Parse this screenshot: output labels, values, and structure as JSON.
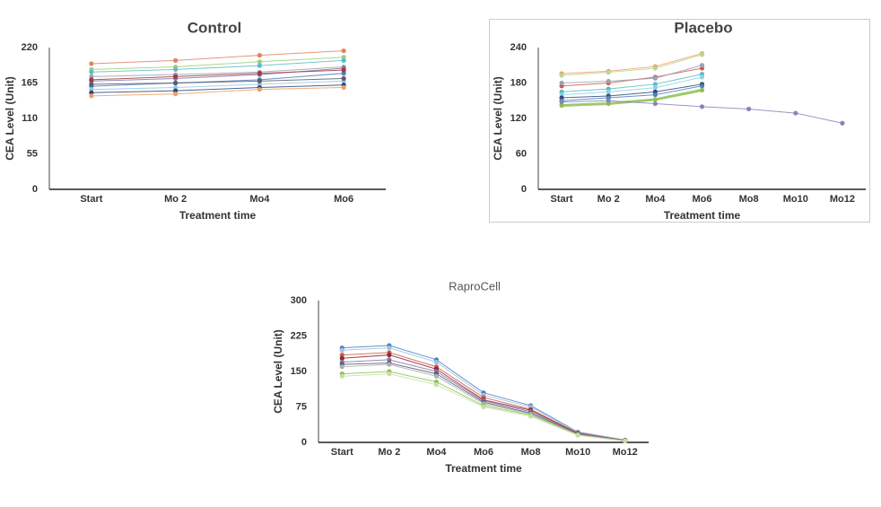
{
  "chart_data": [
    {
      "type": "line",
      "title": "Control",
      "ylabel": "CEA Level (Unit)",
      "xlabel": "Treatment time",
      "categories": [
        "Start",
        "Mo 2",
        "Mo4",
        "Mo6"
      ],
      "ylim": [
        0,
        220
      ],
      "yticks": [
        0,
        55,
        110,
        165,
        220
      ],
      "grid": false,
      "series": [
        {
          "color": "#e0826a",
          "values": [
            195,
            200,
            208,
            215
          ]
        },
        {
          "color": "#9ccf7a",
          "values": [
            186,
            190,
            198,
            205
          ]
        },
        {
          "color": "#5bbcc6",
          "values": [
            182,
            186,
            192,
            200
          ]
        },
        {
          "color": "#9aa3b5",
          "values": [
            175,
            178,
            182,
            190
          ]
        },
        {
          "color": "#8a74ae",
          "values": [
            168,
            172,
            178,
            188
          ]
        },
        {
          "color": "#4f81bd",
          "values": [
            160,
            165,
            170,
            180
          ]
        },
        {
          "color": "#a03a3a",
          "values": [
            170,
            175,
            180,
            185
          ]
        },
        {
          "color": "#9dc3e6",
          "values": [
            155,
            158,
            163,
            168
          ]
        },
        {
          "color": "#2d4a7a",
          "values": [
            150,
            153,
            158,
            162
          ]
        },
        {
          "color": "#f0a060",
          "values": [
            145,
            148,
            155,
            158
          ]
        },
        {
          "color": "#555d6e",
          "values": [
            163,
            165,
            168,
            172
          ]
        }
      ]
    },
    {
      "type": "line",
      "title": "Placebo",
      "ylabel": "CEA Level (Unit)",
      "xlabel": "Treatment time",
      "categories": [
        "Start",
        "Mo 2",
        "Mo4",
        "Mo6",
        "Mo8",
        "Mo10",
        "Mo12"
      ],
      "ylim": [
        0,
        240
      ],
      "yticks": [
        0,
        60,
        120,
        180,
        240
      ],
      "grid": false,
      "series": [
        {
          "color": "#f0a060",
          "values": [
            196,
            200,
            208,
            230,
            null,
            null,
            null
          ]
        },
        {
          "color": "#b5d98f",
          "values": [
            193,
            198,
            205,
            228,
            null,
            null,
            null
          ]
        },
        {
          "color": "#d05a4a",
          "values": [
            175,
            180,
            190,
            205,
            null,
            null,
            null
          ]
        },
        {
          "color": "#9aa3b5",
          "values": [
            180,
            183,
            188,
            210,
            null,
            null,
            null
          ]
        },
        {
          "color": "#5bbcc6",
          "values": [
            165,
            170,
            178,
            195,
            null,
            null,
            null
          ]
        },
        {
          "color": "#8fd3e0",
          "values": [
            160,
            165,
            172,
            190,
            null,
            null,
            null
          ]
        },
        {
          "color": "#2d4a7a",
          "values": [
            155,
            158,
            165,
            178,
            null,
            null,
            null
          ]
        },
        {
          "color": "#4f81bd",
          "values": [
            150,
            155,
            160,
            175,
            null,
            null,
            null
          ]
        },
        {
          "color": "#8cc152",
          "line_width": 3,
          "values": [
            142,
            145,
            152,
            168,
            null,
            null,
            null
          ]
        },
        {
          "color": "#8a84b8",
          "values": [
            148,
            150,
            145,
            140,
            136,
            129,
            112
          ]
        }
      ]
    },
    {
      "type": "line",
      "title": "RaproCell",
      "ylabel": "CEA Level (Unit)",
      "xlabel": "Treatment time",
      "categories": [
        "Start",
        "Mo 2",
        "Mo4",
        "Mo6",
        "Mo8",
        "Mo10",
        "Mo12"
      ],
      "ylim": [
        0,
        300
      ],
      "yticks": [
        0,
        75,
        150,
        225,
        300
      ],
      "grid": false,
      "series": [
        {
          "color": "#4f81bd",
          "values": [
            200,
            205,
            175,
            105,
            78,
            22,
            5
          ]
        },
        {
          "color": "#9dc3e6",
          "values": [
            195,
            200,
            170,
            100,
            75,
            21,
            5
          ]
        },
        {
          "color": "#d05a4a",
          "values": [
            185,
            190,
            160,
            95,
            70,
            20,
            4
          ]
        },
        {
          "color": "#8b2c2c",
          "values": [
            178,
            185,
            155,
            90,
            68,
            19,
            4
          ]
        },
        {
          "color": "#8a74ae",
          "values": [
            170,
            175,
            150,
            88,
            65,
            18,
            4
          ]
        },
        {
          "color": "#555d6e",
          "values": [
            165,
            168,
            145,
            85,
            62,
            18,
            3
          ]
        },
        {
          "color": "#b0b0b0",
          "values": [
            160,
            165,
            140,
            82,
            60,
            17,
            3
          ]
        },
        {
          "color": "#8cc152",
          "values": [
            145,
            150,
            128,
            78,
            58,
            16,
            3
          ]
        },
        {
          "color": "#c5e0a5",
          "values": [
            140,
            145,
            122,
            75,
            55,
            15,
            3
          ]
        }
      ]
    }
  ]
}
